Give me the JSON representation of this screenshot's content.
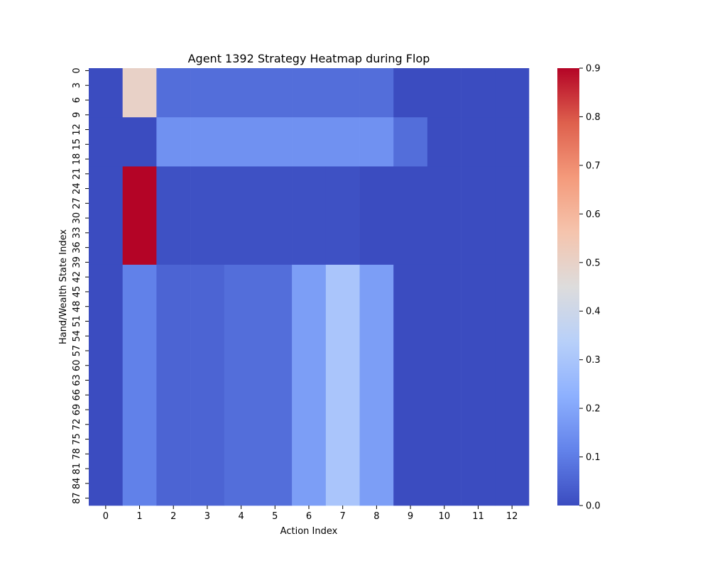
{
  "chart_data": {
    "type": "heatmap",
    "title": "Agent 1392 Strategy Heatmap during Flop",
    "xlabel": "Action Index",
    "ylabel": "Hand/Wealth State Index",
    "x_categories": [
      "0",
      "1",
      "2",
      "3",
      "4",
      "5",
      "6",
      "7",
      "8",
      "9",
      "10",
      "11",
      "12"
    ],
    "y_tick_labels": [
      "0",
      "3",
      "6",
      "9",
      "12",
      "15",
      "18",
      "21",
      "24",
      "27",
      "30",
      "33",
      "36",
      "39",
      "42",
      "45",
      "48",
      "51",
      "54",
      "57",
      "60",
      "63",
      "66",
      "69",
      "72",
      "75",
      "78",
      "81",
      "84",
      "87"
    ],
    "y_tick_step": 3,
    "n_rows": 89,
    "row_blocks": [
      {
        "rows": [
          0,
          9
        ],
        "values": [
          0.0,
          0.5,
          0.07,
          0.07,
          0.07,
          0.07,
          0.07,
          0.07,
          0.07,
          0.0,
          0.0,
          0.0,
          0.0
        ]
      },
      {
        "rows": [
          10,
          19
        ],
        "values": [
          0.0,
          0.0,
          0.15,
          0.15,
          0.15,
          0.15,
          0.15,
          0.15,
          0.15,
          0.07,
          0.0,
          0.0,
          0.0
        ]
      },
      {
        "rows": [
          20,
          39
        ],
        "values": [
          0.0,
          0.9,
          0.01,
          0.01,
          0.01,
          0.01,
          0.01,
          0.01,
          0.0,
          0.0,
          0.0,
          0.0,
          0.0
        ]
      },
      {
        "rows": [
          40,
          88
        ],
        "values": [
          0.0,
          0.11,
          0.05,
          0.05,
          0.07,
          0.07,
          0.18,
          0.3,
          0.18,
          0.0,
          0.0,
          0.0,
          0.0
        ]
      }
    ],
    "colorbar": {
      "colormap": "coolwarm",
      "vmin": 0.0,
      "vmax": 0.9,
      "ticks": [
        "0.0",
        "0.1",
        "0.2",
        "0.3",
        "0.4",
        "0.5",
        "0.6",
        "0.7",
        "0.8",
        "0.9"
      ]
    }
  }
}
